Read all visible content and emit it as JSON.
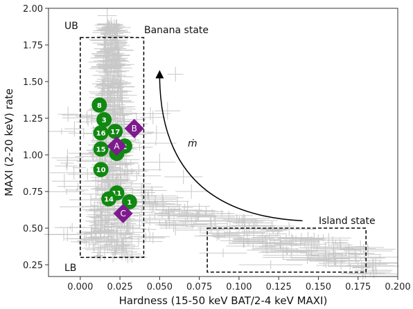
{
  "chart_data": {
    "type": "scatter",
    "xlabel": "Hardness (15-50 keV BAT/2-4 keV MAXI)",
    "ylabel": "MAXI (2-20 keV) rate",
    "xlim": [
      -0.02,
      0.2
    ],
    "ylim": [
      0.17,
      2.0
    ],
    "xticks": [
      "0.000",
      "0.025",
      "0.050",
      "0.075",
      "0.100",
      "0.125",
      "0.150",
      "0.175",
      "0.200"
    ],
    "xtick_values": [
      0.0,
      0.025,
      0.05,
      0.075,
      0.1,
      0.125,
      0.15,
      0.175,
      0.2
    ],
    "yticks": [
      "0.25",
      "0.50",
      "0.75",
      "1.00",
      "1.25",
      "1.50",
      "1.75",
      "2.00"
    ],
    "ytick_values": [
      0.25,
      0.5,
      0.75,
      1.0,
      1.25,
      1.5,
      1.75,
      2.0
    ],
    "grid": false,
    "colors": {
      "errorbars": "#c8c8c8",
      "green_markers": "#118811",
      "purple_markers": "#7e1a8e",
      "boxes": "#000000",
      "arrow": "#000000"
    },
    "regions": [
      {
        "label": "Banana state",
        "x0": 0.0,
        "x1": 0.04,
        "y0": 0.3,
        "y1": 1.8
      },
      {
        "label": "Island state",
        "x0": 0.08,
        "x1": 0.18,
        "y0": 0.2,
        "y1": 0.5
      }
    ],
    "annotations": {
      "ub": "UB",
      "lb": "LB",
      "mdot": "ṁ"
    },
    "green_points": [
      {
        "label": "8",
        "x": 0.012,
        "y": 1.34
      },
      {
        "label": "3",
        "x": 0.015,
        "y": 1.24
      },
      {
        "label": "16",
        "x": 0.013,
        "y": 1.15
      },
      {
        "label": "17",
        "x": 0.022,
        "y": 1.16
      },
      {
        "label": "15",
        "x": 0.013,
        "y": 1.04
      },
      {
        "label": "2",
        "x": 0.028,
        "y": 1.06
      },
      {
        "label": "",
        "x": 0.023,
        "y": 1.01
      },
      {
        "label": "10",
        "x": 0.013,
        "y": 0.9
      },
      {
        "label": "11",
        "x": 0.023,
        "y": 0.74
      },
      {
        "label": "14",
        "x": 0.018,
        "y": 0.7
      },
      {
        "label": "1",
        "x": 0.031,
        "y": 0.68
      }
    ],
    "purple_points": [
      {
        "label": "B",
        "x": 0.034,
        "y": 1.18
      },
      {
        "label": "A",
        "x": 0.023,
        "y": 1.06
      },
      {
        "label": "C",
        "x": 0.027,
        "y": 0.6
      }
    ],
    "error_cloud": [
      {
        "x": 0.017,
        "xerr": 0.006,
        "y": 1.95,
        "yerr": 0.05
      },
      {
        "x": 0.02,
        "xerr": 0.01,
        "y": 1.85,
        "yerr": 0.06
      },
      {
        "x": 0.015,
        "xerr": 0.008,
        "y": 1.78,
        "yerr": 0.05
      },
      {
        "x": 0.06,
        "xerr": 0.005,
        "y": 1.55,
        "yerr": 0.05
      },
      {
        "x": 0.055,
        "xerr": 0.008,
        "y": 1.3,
        "yerr": 0.06
      },
      {
        "x": 0.048,
        "xerr": 0.006,
        "y": 1.15,
        "yerr": 0.05
      },
      {
        "x": 0.05,
        "xerr": 0.01,
        "y": 0.95,
        "yerr": 0.06
      },
      {
        "x": 0.065,
        "xerr": 0.012,
        "y": 0.85,
        "yerr": 0.05
      },
      {
        "x": 0.07,
        "xerr": 0.01,
        "y": 0.75,
        "yerr": 0.05
      },
      {
        "x": 0.04,
        "xerr": 0.012,
        "y": 0.78,
        "yerr": 0.06
      },
      {
        "x": 0.085,
        "xerr": 0.02,
        "y": 0.55,
        "yerr": 0.04
      },
      {
        "x": 0.1,
        "xerr": 0.025,
        "y": 0.45,
        "yerr": 0.04
      },
      {
        "x": 0.115,
        "xerr": 0.02,
        "y": 0.4,
        "yerr": 0.03
      },
      {
        "x": 0.13,
        "xerr": 0.025,
        "y": 0.35,
        "yerr": 0.03
      },
      {
        "x": 0.145,
        "xerr": 0.03,
        "y": 0.3,
        "yerr": 0.03
      },
      {
        "x": 0.16,
        "xerr": 0.03,
        "y": 0.28,
        "yerr": 0.03
      },
      {
        "x": 0.175,
        "xerr": 0.025,
        "y": 0.26,
        "yerr": 0.02
      },
      {
        "x": 0.09,
        "xerr": 0.015,
        "y": 0.33,
        "yerr": 0.03
      },
      {
        "x": 0.12,
        "xerr": 0.02,
        "y": 0.25,
        "yerr": 0.03
      },
      {
        "x": 0.02,
        "xerr": 0.012,
        "y": 0.4,
        "yerr": 0.05
      },
      {
        "x": 0.03,
        "xerr": 0.012,
        "y": 0.3,
        "yerr": 0.04
      },
      {
        "x": -0.008,
        "xerr": 0.01,
        "y": 0.98,
        "yerr": 0.06
      },
      {
        "x": -0.01,
        "xerr": 0.008,
        "y": 0.82,
        "yerr": 0.05
      },
      {
        "x": 0.075,
        "xerr": 0.01,
        "y": 0.62,
        "yerr": 0.05
      },
      {
        "x": 0.06,
        "xerr": 0.01,
        "y": 0.5,
        "yerr": 0.05
      }
    ]
  }
}
